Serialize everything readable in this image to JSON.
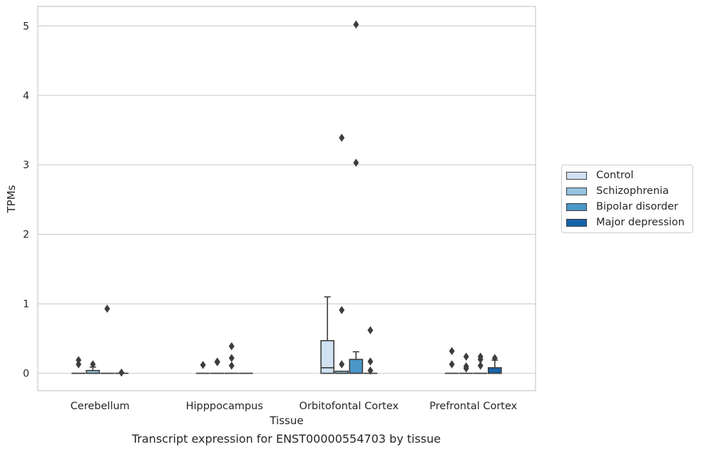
{
  "chart_data": {
    "type": "box",
    "xlabel": "Tissue",
    "ylabel": "TPMs",
    "ylim": [
      -0.25,
      5.28
    ],
    "yticks": [
      0,
      1,
      2,
      3,
      4,
      5
    ],
    "grid": true,
    "legend_placement": "right",
    "caption": "Transcript expression for ENST00000554703 by tissue",
    "categories": [
      "Cerebellum",
      "Hipppocampus",
      "Orbitofontal Cortex",
      "Prefrontal Cortex"
    ],
    "series": [
      {
        "name": "Control",
        "color": "#d0e1f2",
        "boxes": [
          {
            "q1": 0,
            "median": 0,
            "q3": 0,
            "whisker_low": 0,
            "whisker_high": 0,
            "outliers": [
              0.13,
              0.19
            ]
          },
          {
            "q1": 0,
            "median": 0,
            "q3": 0,
            "whisker_low": 0,
            "whisker_high": 0,
            "outliers": [
              0.12
            ]
          },
          {
            "q1": 0,
            "median": 0.08,
            "q3": 0.47,
            "whisker_low": 0,
            "whisker_high": 1.1,
            "outliers": []
          },
          {
            "q1": 0,
            "median": 0,
            "q3": 0,
            "whisker_low": 0,
            "whisker_high": 0,
            "outliers": [
              0.13,
              0.32
            ]
          }
        ]
      },
      {
        "name": "Schizophrenia",
        "color": "#94c4df",
        "boxes": [
          {
            "q1": 0,
            "median": 0,
            "q3": 0.04,
            "whisker_low": 0,
            "whisker_high": 0.09,
            "outliers": [
              0.13
            ]
          },
          {
            "q1": 0,
            "median": 0,
            "q3": 0,
            "whisker_low": 0,
            "whisker_high": 0,
            "outliers": [
              0.16,
              0.17
            ]
          },
          {
            "q1": 0,
            "median": 0,
            "q3": 0.03,
            "whisker_low": 0,
            "whisker_high": 0.03,
            "outliers": [
              0.13,
              0.91,
              3.39
            ]
          },
          {
            "q1": 0,
            "median": 0,
            "q3": 0,
            "whisker_low": 0,
            "whisker_high": 0,
            "outliers": [
              0.07,
              0.1,
              0.24
            ]
          }
        ]
      },
      {
        "name": "Bipolar disorder",
        "color": "#4a98c9",
        "boxes": [
          {
            "q1": 0,
            "median": 0,
            "q3": 0,
            "whisker_low": 0,
            "whisker_high": 0,
            "outliers": [
              0.93
            ]
          },
          {
            "q1": 0,
            "median": 0,
            "q3": 0,
            "whisker_low": 0,
            "whisker_high": 0,
            "outliers": [
              0.11,
              0.22,
              0.39
            ]
          },
          {
            "q1": 0,
            "median": 0,
            "q3": 0.2,
            "whisker_low": 0,
            "whisker_high": 0.31,
            "outliers": [
              3.03,
              5.02
            ]
          },
          {
            "q1": 0,
            "median": 0,
            "q3": 0,
            "whisker_low": 0,
            "whisker_high": 0,
            "outliers": [
              0.11,
              0.2,
              0.24
            ]
          }
        ]
      },
      {
        "name": "Major depression",
        "color": "#1764ab",
        "boxes": [
          {
            "q1": 0,
            "median": 0,
            "q3": 0,
            "whisker_low": 0,
            "whisker_high": 0,
            "outliers": [
              0.01
            ]
          },
          {
            "q1": 0,
            "median": 0,
            "q3": 0,
            "whisker_low": 0,
            "whisker_high": 0,
            "outliers": []
          },
          {
            "q1": 0,
            "median": 0,
            "q3": 0,
            "whisker_low": 0,
            "whisker_high": 0,
            "outliers": [
              0.04,
              0.17,
              0.62
            ]
          },
          {
            "q1": 0,
            "median": 0,
            "q3": 0.08,
            "whisker_low": 0,
            "whisker_high": 0.19,
            "outliers": [
              0.22
            ]
          }
        ]
      }
    ]
  },
  "colors": {
    "grid": "#cccccc",
    "frame": "#cccccc",
    "box_edge": "#3d3d3d",
    "text": "#262626"
  }
}
